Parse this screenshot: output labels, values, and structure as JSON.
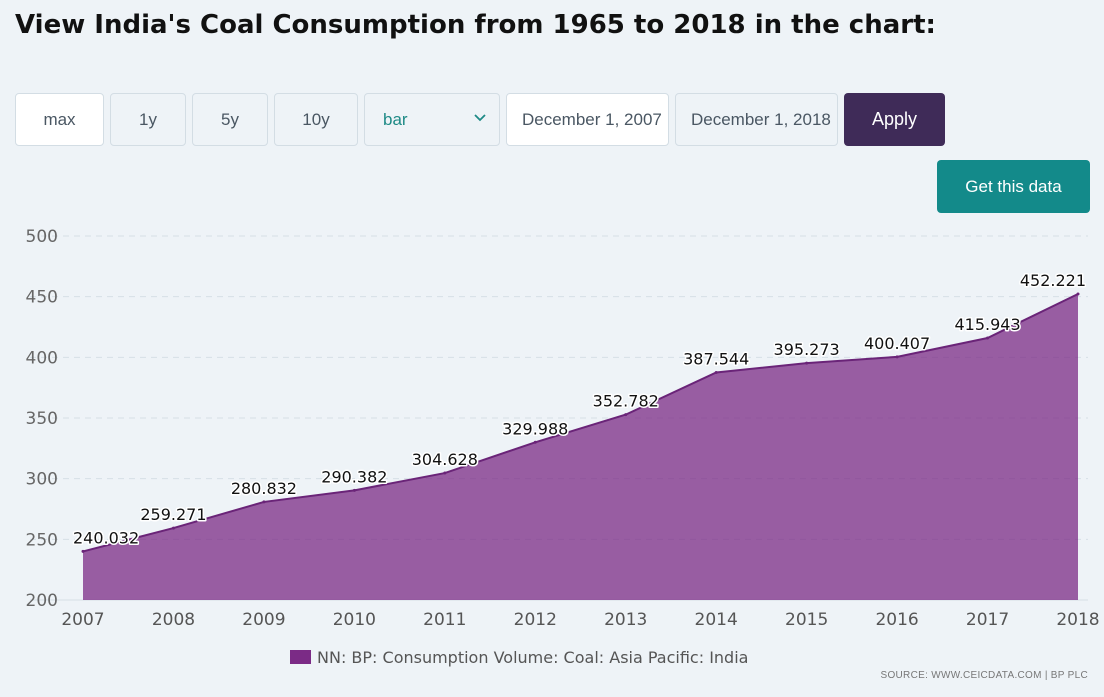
{
  "page": {
    "title": "View India's Coal Consumption from 1965 to 2018 in the chart:"
  },
  "controls": {
    "range_buttons": [
      "max",
      "1y",
      "5y",
      "10y"
    ],
    "chart_type_selected": "bar",
    "date_from": "December 1, 2007",
    "date_to": "December 1, 2018",
    "apply_label": "Apply",
    "get_data_label": "Get this data"
  },
  "legend": {
    "label": "NN: BP: Consumption Volume: Coal: Asia Pacific: India",
    "color": "#7b2b86"
  },
  "source": "SOURCE: WWW.CEICDATA.COM | BP PLC",
  "chart_data": {
    "type": "area",
    "categories": [
      "2007",
      "2008",
      "2009",
      "2010",
      "2011",
      "2012",
      "2013",
      "2014",
      "2015",
      "2016",
      "2017",
      "2018"
    ],
    "series": [
      {
        "name": "NN: BP: Consumption Volume: Coal: Asia Pacific: India",
        "values": [
          240.032,
          259.271,
          280.832,
          290.382,
          304.628,
          329.988,
          352.782,
          387.544,
          395.273,
          400.407,
          415.943,
          452.221
        ],
        "labels": [
          "240.032",
          "259.271",
          "280.832",
          "290.382",
          "304.628",
          "329.988",
          "352.782",
          "387.544",
          "395.273",
          "400.407",
          "415.943",
          "452.221"
        ]
      }
    ],
    "ylim": [
      200,
      500
    ],
    "yticks": [
      "200",
      "250",
      "300",
      "350",
      "400",
      "450",
      "500"
    ],
    "grid": true,
    "legend_position": "bottom",
    "colors": {
      "fill": "#7b2b86",
      "line": "#6a2478"
    }
  }
}
